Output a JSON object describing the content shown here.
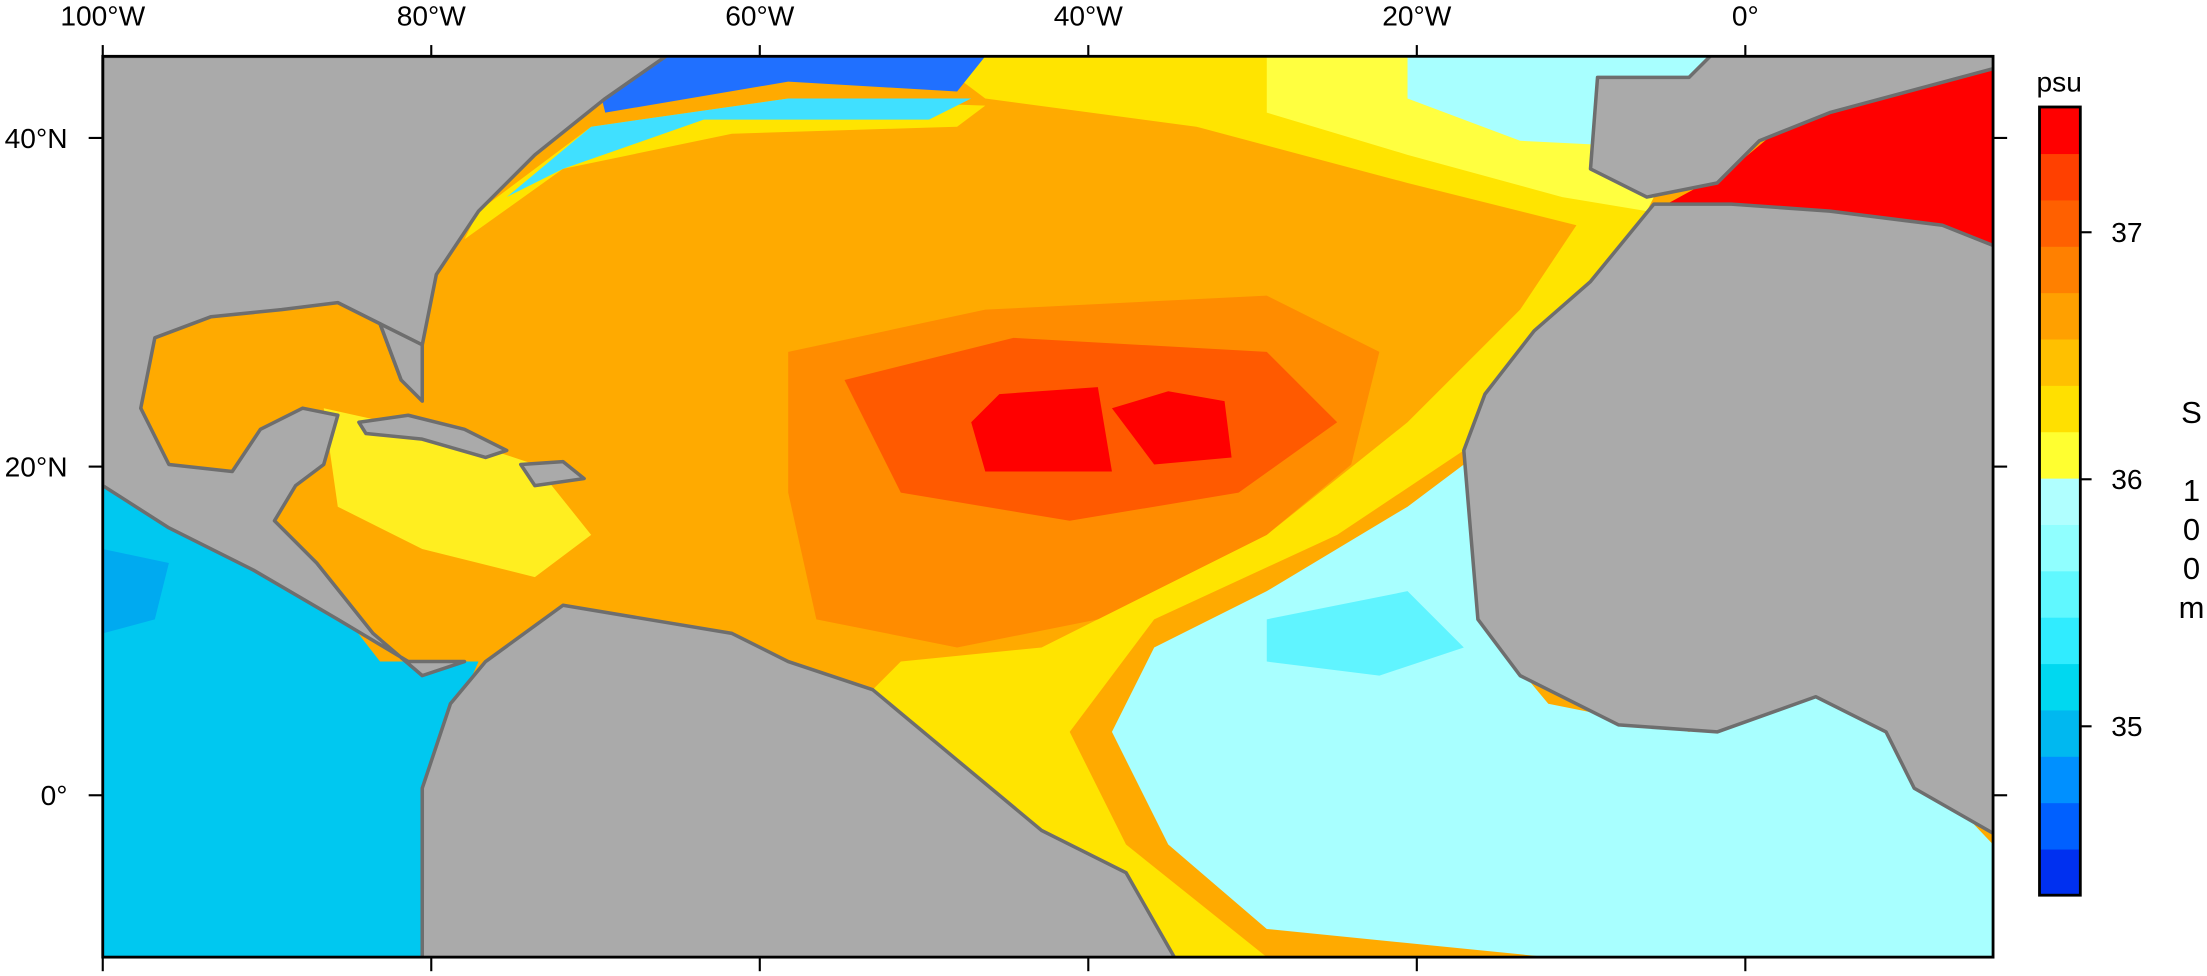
{
  "map": {
    "lon_labels": [
      "100°W",
      "80°W",
      "60°W",
      "40°W",
      "20°W",
      "0°"
    ],
    "lat_labels": [
      "40°N",
      "20°N",
      "0°"
    ],
    "colorbar": {
      "unit": "psu",
      "tick_labels": [
        "37",
        "36",
        "35"
      ],
      "title": "S 100m"
    }
  }
}
